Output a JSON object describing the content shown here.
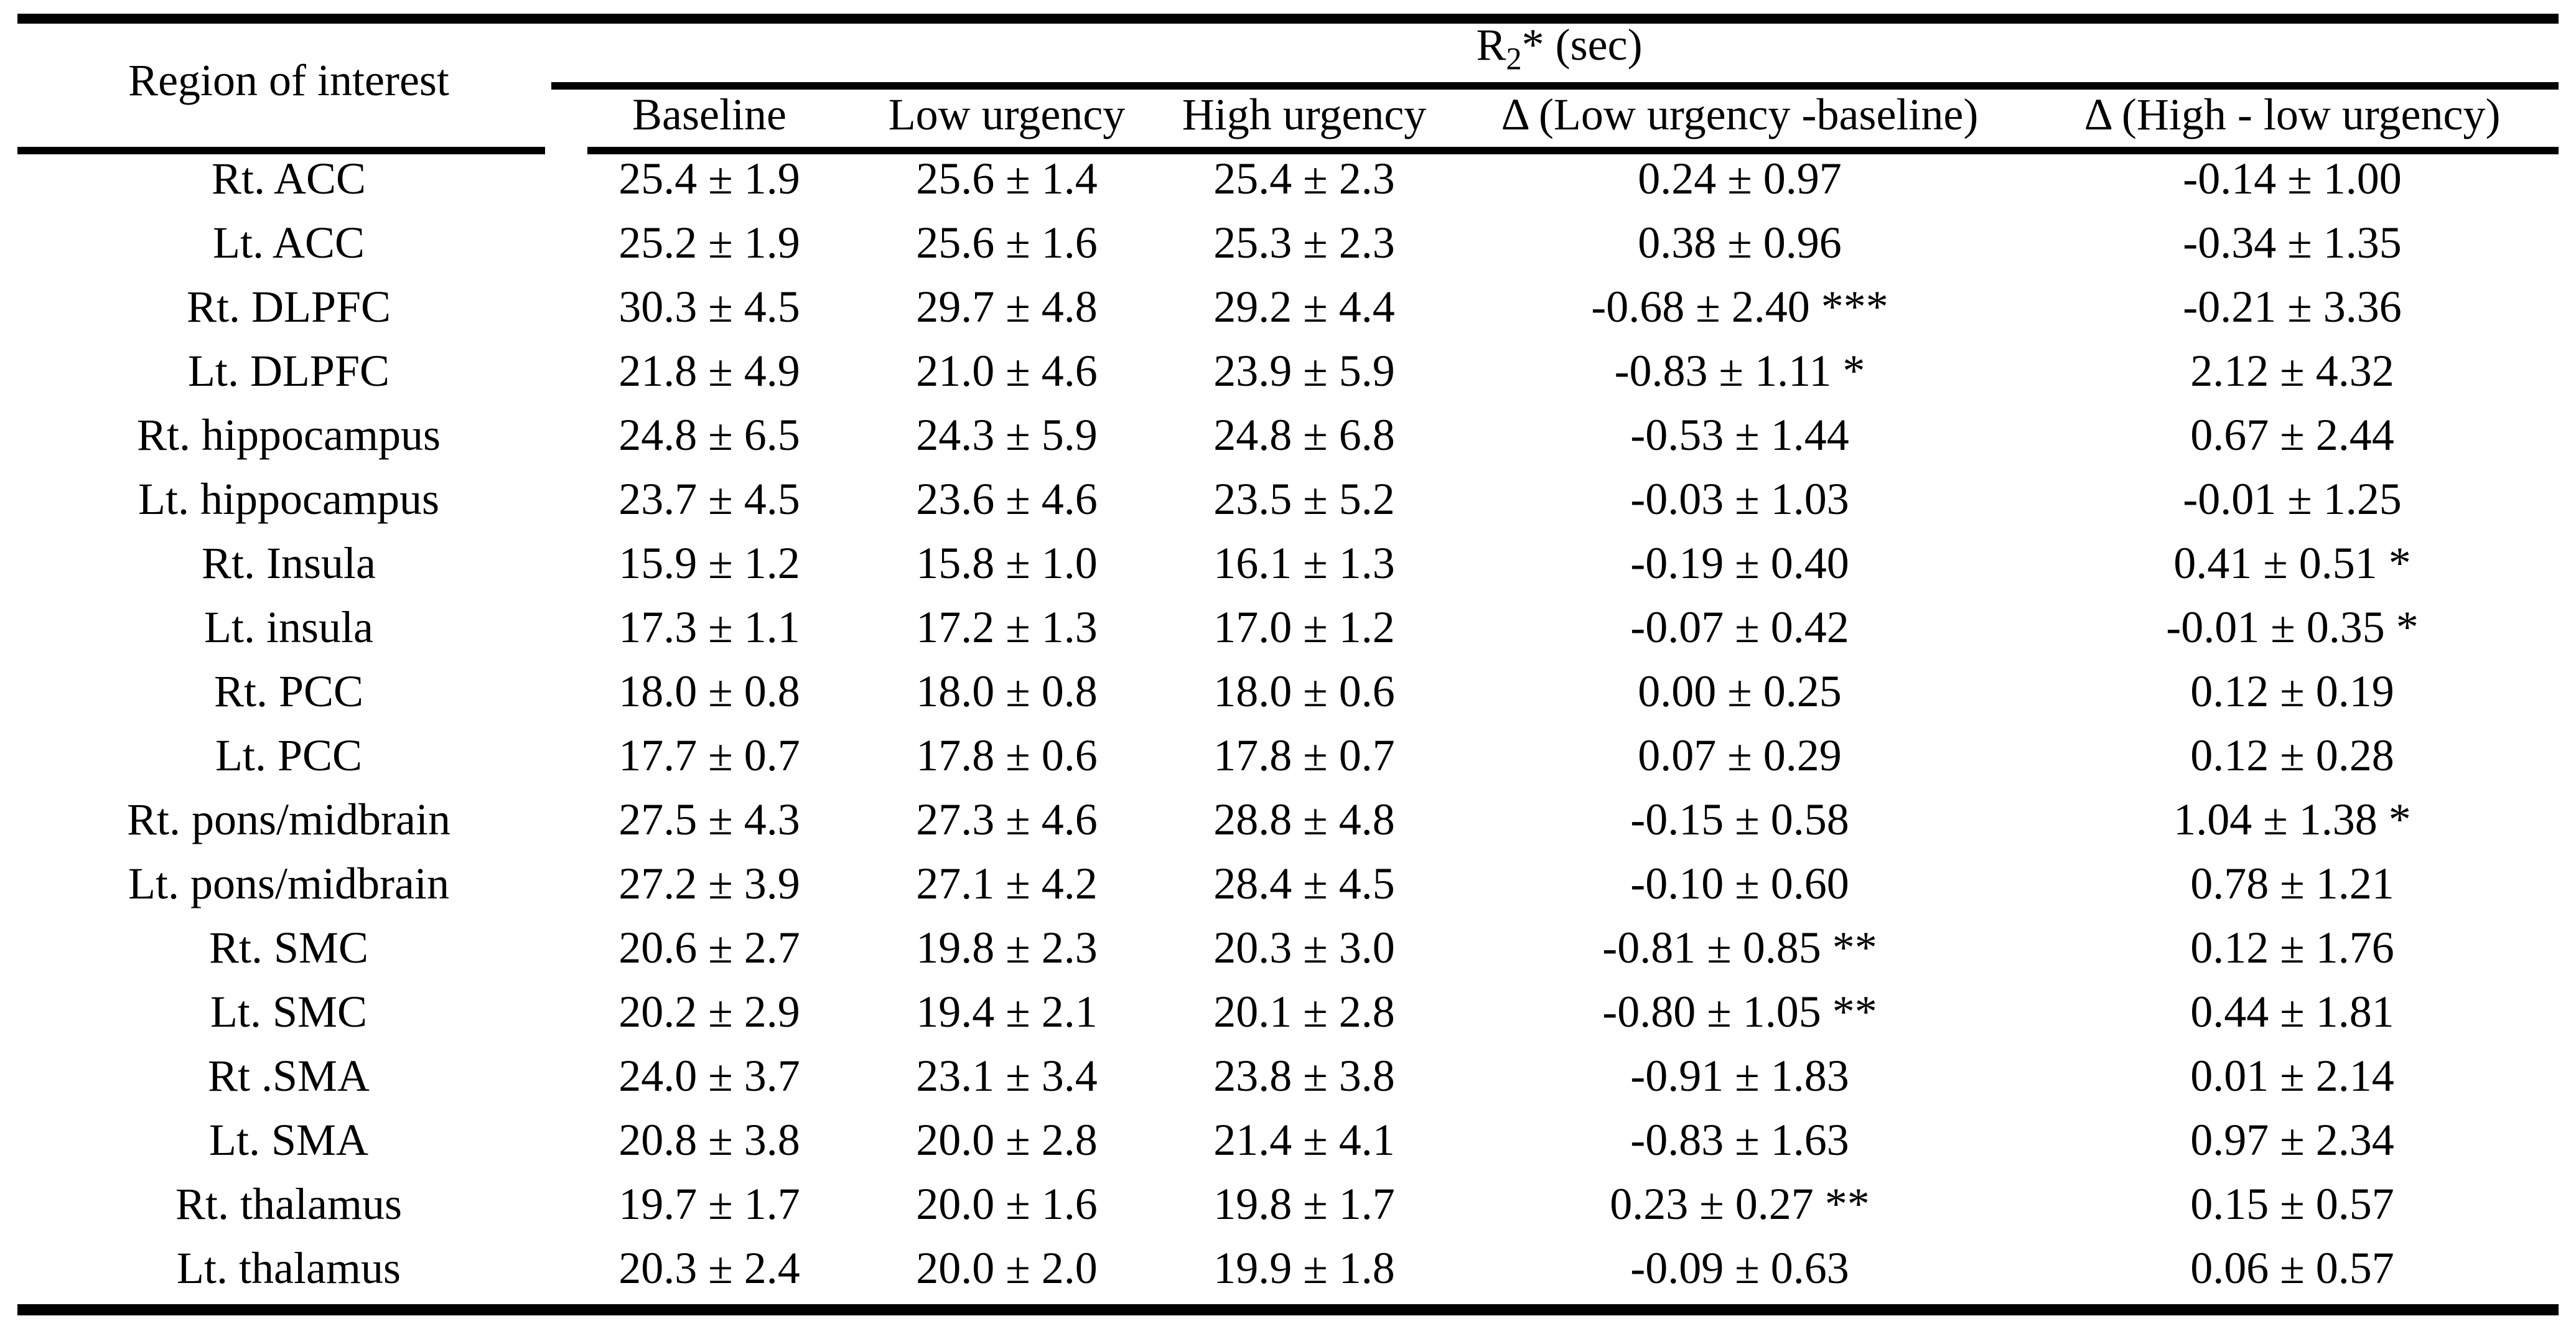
{
  "table": {
    "row_header": "Region of interest",
    "group_header": {
      "prefix": "R",
      "subscript": "2",
      "suffix": "* (sec)"
    },
    "columns": [
      "Baseline",
      "Low urgency",
      "High urgency",
      "Δ (Low urgency -baseline)",
      "Δ (High - low urgency)"
    ],
    "rows": [
      [
        "Rt. ACC",
        "25.4 ± 1.9",
        "25.6 ± 1.4",
        "25.4 ± 2.3",
        "0.24 ± 0.97",
        "-0.14 ± 1.00"
      ],
      [
        "Lt. ACC",
        "25.2 ± 1.9",
        "25.6 ± 1.6",
        "25.3 ± 2.3",
        "0.38 ± 0.96",
        "-0.34 ± 1.35"
      ],
      [
        "Rt. DLPFC",
        "30.3 ± 4.5",
        "29.7 ± 4.8",
        "29.2 ± 4.4",
        "-0.68 ± 2.40 ***",
        "-0.21 ± 3.36"
      ],
      [
        "Lt. DLPFC",
        "21.8 ± 4.9",
        "21.0 ± 4.6",
        "23.9 ± 5.9",
        "-0.83 ± 1.11 *",
        "2.12 ± 4.32"
      ],
      [
        "Rt. hippocampus",
        "24.8 ± 6.5",
        "24.3 ± 5.9",
        "24.8 ± 6.8",
        "-0.53 ± 1.44",
        "0.67 ± 2.44"
      ],
      [
        "Lt. hippocampus",
        "23.7 ± 4.5",
        "23.6 ± 4.6",
        "23.5 ± 5.2",
        "-0.03 ± 1.03",
        "-0.01 ± 1.25"
      ],
      [
        "Rt. Insula",
        "15.9 ± 1.2",
        "15.8 ± 1.0",
        "16.1 ± 1.3",
        "-0.19 ± 0.40",
        "0.41 ± 0.51 *"
      ],
      [
        "Lt. insula",
        "17.3 ± 1.1",
        "17.2 ± 1.3",
        "17.0 ± 1.2",
        "-0.07 ± 0.42",
        "-0.01 ± 0.35 *"
      ],
      [
        "Rt. PCC",
        "18.0 ± 0.8",
        "18.0 ± 0.8",
        "18.0 ± 0.6",
        "0.00 ± 0.25",
        "0.12 ± 0.19"
      ],
      [
        "Lt. PCC",
        "17.7 ± 0.7",
        "17.8 ± 0.6",
        "17.8 ± 0.7",
        "0.07 ± 0.29",
        "0.12 ± 0.28"
      ],
      [
        "Rt. pons/midbrain",
        "27.5 ± 4.3",
        "27.3 ± 4.6",
        "28.8 ± 4.8",
        "-0.15 ± 0.58",
        "1.04 ± 1.38 *"
      ],
      [
        "Lt. pons/midbrain",
        "27.2 ± 3.9",
        "27.1 ± 4.2",
        "28.4 ± 4.5",
        "-0.10 ± 0.60",
        "0.78 ± 1.21"
      ],
      [
        "Rt. SMC",
        "20.6 ± 2.7",
        "19.8 ± 2.3",
        "20.3 ± 3.0",
        "-0.81 ± 0.85 **",
        "0.12 ± 1.76"
      ],
      [
        "Lt. SMC",
        "20.2 ± 2.9",
        "19.4 ± 2.1",
        "20.1 ± 2.8",
        "-0.80 ± 1.05 **",
        "0.44 ± 1.81"
      ],
      [
        "Rt .SMA",
        "24.0 ± 3.7",
        "23.1 ± 3.4",
        "23.8 ± 3.8",
        "-0.91 ± 1.83",
        "0.01 ± 2.14"
      ],
      [
        "Lt. SMA",
        "20.8 ± 3.8",
        "20.0 ± 2.8",
        "21.4 ± 4.1",
        "-0.83 ± 1.63",
        "0.97 ± 2.34"
      ],
      [
        "Rt. thalamus",
        "19.7 ± 1.7",
        "20.0 ± 1.6",
        "19.8 ± 1.7",
        "0.23 ± 0.27 **",
        "0.15 ± 0.57"
      ],
      [
        "Lt. thalamus",
        "20.3 ± 2.4",
        "20.0 ± 2.0",
        "19.9 ± 1.8",
        "-0.09 ± 0.63",
        "0.06 ± 0.57"
      ]
    ],
    "colors": {
      "text": "#000000",
      "background": "#ffffff",
      "rule": "#000000"
    }
  }
}
